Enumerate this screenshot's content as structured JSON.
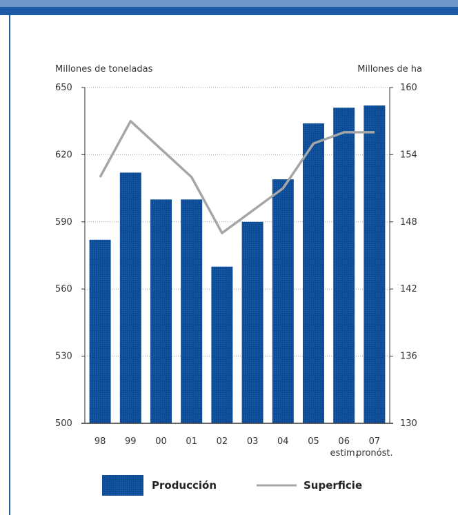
{
  "chart_data": {
    "type": "bar",
    "categories": [
      "98",
      "99",
      "00",
      "01",
      "02",
      "03",
      "04",
      "05",
      "06",
      "07"
    ],
    "category_sublabels": [
      "",
      "",
      "",
      "",
      "",
      "",
      "",
      "",
      "estim.",
      "pronóst."
    ],
    "series": [
      {
        "name": "Producción",
        "type": "bar",
        "axis": "left",
        "values": [
          582,
          612,
          600,
          600,
          570,
          590,
          609,
          634,
          641,
          642
        ]
      },
      {
        "name": "Superficie",
        "type": "line",
        "axis": "right",
        "values": [
          152,
          157,
          154.5,
          152,
          147,
          149,
          151,
          155,
          156,
          156
        ]
      }
    ],
    "y_left": {
      "label": "Millones de toneladas",
      "ticks": [
        "500",
        "530",
        "560",
        "590",
        "620",
        "650"
      ],
      "range": [
        500,
        650
      ]
    },
    "y_right": {
      "label": "Millones de ha",
      "ticks": [
        "130",
        "136",
        "142",
        "148",
        "154",
        "160"
      ],
      "range": [
        130,
        160
      ]
    },
    "grid": true,
    "legend_position": "bottom",
    "colors": {
      "bar": "#0d4c96",
      "line": "#a6a6a6",
      "grid": "#9a9a9a",
      "frame": "#1e5aa8"
    }
  }
}
